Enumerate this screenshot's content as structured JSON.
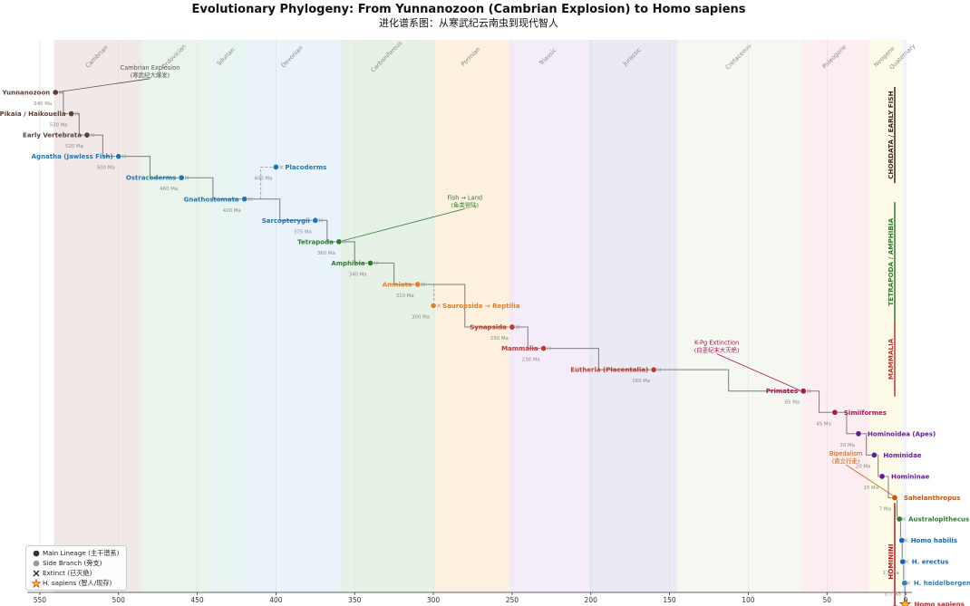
{
  "chart_data": {
    "type": "scatter",
    "title": "Evolutionary Phylogeny: From Yunnanozoon (Cambrian Explosion) to Homo sapiens",
    "subtitle": "进化谱系图：从寒武纪云南虫到现代智人",
    "xlabel": "(Present)",
    "x_ticks": [
      550,
      500,
      450,
      400,
      350,
      300,
      250,
      200,
      150,
      100,
      50,
      0
    ],
    "xlim": [
      558,
      -4
    ],
    "x_reversed": true,
    "periods": [
      {
        "name": "Cambrian",
        "start": 541,
        "end": 485,
        "color": "#d7c4c1"
      },
      {
        "name": "Ordovician",
        "start": 485,
        "end": 443,
        "color": "#c9e3c9"
      },
      {
        "name": "Silurian",
        "start": 443,
        "end": 419,
        "color": "#bfe3d9"
      },
      {
        "name": "Devonian",
        "start": 419,
        "end": 359,
        "color": "#c9e0f3"
      },
      {
        "name": "Carboniferous",
        "start": 359,
        "end": 299,
        "color": "#bfdcbf"
      },
      {
        "name": "Permian",
        "start": 299,
        "end": 252,
        "color": "#fbd8a8"
      },
      {
        "name": "Triassic",
        "start": 252,
        "end": 201,
        "color": "#e6cdef"
      },
      {
        "name": "Jurassic",
        "start": 201,
        "end": 145,
        "color": "#c5c9e3"
      },
      {
        "name": "Cretaceous",
        "start": 145,
        "end": 66,
        "color": "#e1edd9"
      },
      {
        "name": "Paleogene",
        "start": 66,
        "end": 23,
        "color": "#f8cfd9"
      },
      {
        "name": "Neogene",
        "start": 23,
        "end": 2.6,
        "color": "#fdf5c4"
      },
      {
        "name": "Quaternary",
        "start": 2.6,
        "end": 0,
        "color": "#d9ecf7"
      }
    ],
    "nodes": [
      {
        "label": "Yunnanozoon",
        "x": 540,
        "row": 0,
        "kind": "main",
        "color": "#5d4037",
        "age": "540 Ma"
      },
      {
        "label": "Pikaia / Haikouella",
        "x": 530,
        "row": 1,
        "kind": "main",
        "color": "#5d4037",
        "age": "530 Ma"
      },
      {
        "label": "Early Vertebrata",
        "x": 520,
        "row": 2,
        "kind": "main",
        "color": "#5d4037",
        "age": "520 Ma"
      },
      {
        "label": "Agnatha (Jawless Fish)",
        "x": 500,
        "row": 3,
        "kind": "main",
        "color": "#1f77b4",
        "age": "500 Ma"
      },
      {
        "label": "Ostracoderms",
        "x": 460,
        "row": 4,
        "kind": "main",
        "color": "#1f77b4",
        "age": "460 Ma"
      },
      {
        "label": "Placoderms",
        "x": 400,
        "row": 3.5,
        "kind": "side",
        "color": "#1f77b4",
        "age": "400 Ma"
      },
      {
        "label": "Gnathostomata",
        "x": 420,
        "row": 5,
        "kind": "main",
        "color": "#1f77b4",
        "age": "420 Ma"
      },
      {
        "label": "Sarcopterygii",
        "x": 375,
        "row": 6,
        "kind": "main",
        "color": "#1f77b4",
        "age": "375 Ma"
      },
      {
        "label": "Tetrapoda",
        "x": 360,
        "row": 7,
        "kind": "main",
        "color": "#2e7d32",
        "age": "360 Ma"
      },
      {
        "label": "Amphibia",
        "x": 340,
        "row": 8,
        "kind": "main",
        "color": "#2e7d32",
        "age": "340 Ma"
      },
      {
        "label": "Amniota",
        "x": 310,
        "row": 9,
        "kind": "main",
        "color": "#e67e22",
        "age": "310 Ma"
      },
      {
        "label": "Sauropsida → Reptilia",
        "x": 300,
        "row": 10,
        "kind": "side",
        "color": "#e67e22",
        "age": "300 Ma"
      },
      {
        "label": "Synapsida",
        "x": 250,
        "row": 11,
        "kind": "main",
        "color": "#c0392b",
        "age": "250 Ma"
      },
      {
        "label": "Mammalia",
        "x": 230,
        "row": 12,
        "kind": "main",
        "color": "#c0392b",
        "age": "230 Ma"
      },
      {
        "label": "Eutheria (Placentalia)",
        "x": 160,
        "row": 13,
        "kind": "main",
        "color": "#c0392b",
        "age": "160 Ma"
      },
      {
        "label": "Primates",
        "x": 65,
        "row": 14,
        "kind": "main",
        "color": "#ad1457",
        "age": "65 Ma"
      },
      {
        "label": "Simiiformes",
        "x": 45,
        "row": 15,
        "kind": "main",
        "color": "#ad1457",
        "age": "45 Ma"
      },
      {
        "label": "Hominoidea (Apes)",
        "x": 30,
        "row": 16,
        "kind": "main",
        "color": "#6a1b9a",
        "age": "30 Ma"
      },
      {
        "label": "Hominidae",
        "x": 20,
        "row": 17,
        "kind": "main",
        "color": "#6a1b9a",
        "age": "20 Ma"
      },
      {
        "label": "Homininae",
        "x": 15,
        "row": 18,
        "kind": "main",
        "color": "#6a1b9a",
        "age": "15 Ma"
      },
      {
        "label": "Sahelanthropus",
        "x": 7,
        "row": 19,
        "kind": "main",
        "color": "#d35400",
        "age": "7 Ma"
      },
      {
        "label": "Australopithecus",
        "x": 4,
        "row": 20,
        "kind": "extinct",
        "color": "#2e7d32",
        "age": ""
      },
      {
        "label": "Homo habilis",
        "x": 2.5,
        "row": 21,
        "kind": "extinct",
        "color": "#1565c0",
        "age": ""
      },
      {
        "label": "H. erectus",
        "x": 1.9,
        "row": 22,
        "kind": "extinct",
        "color": "#1565c0",
        "age": "1.9 Ma"
      },
      {
        "label": "H. heidelbergensis",
        "x": 0.7,
        "row": 23,
        "kind": "extinct",
        "color": "#2980b9",
        "age": "0.7 Ma"
      },
      {
        "label": "Homo sapiens",
        "x": 0.3,
        "row": 24,
        "kind": "sapiens",
        "color": "#c62828",
        "age": "0.3 Ma"
      }
    ],
    "annotations": [
      {
        "text": "Cambrian Explosion",
        "text2": "(寒武纪大爆发)",
        "tx": 480,
        "trow": -0.9,
        "ax": 540,
        "arow": 0,
        "color": "#555555"
      },
      {
        "text": "Fish → Land",
        "text2": "(鱼类登陆)",
        "tx": 280,
        "trow": 5.2,
        "ax": 360,
        "arow": 7,
        "color": "#2e7d32"
      },
      {
        "text": "K-Pg Extinction",
        "text2": "(白垩纪末大灭绝)",
        "tx": 120,
        "trow": 12.0,
        "ax": 66,
        "arow": 14,
        "color": "#ad1457"
      },
      {
        "text": "Bipedalism",
        "text2": "(直立行走)",
        "tx": 38,
        "trow": 17.2,
        "ax": 6,
        "arow": 19,
        "color": "#d35400"
      }
    ],
    "eras": [
      {
        "name": "CHORDATA / EARLY FISH",
        "row_start": 0,
        "row_end": 4,
        "color": "#3e2723"
      },
      {
        "name": "TETRAPODA / AMPHIBIA",
        "row_start": 5.4,
        "row_end": 10.5,
        "color": "#2e7d32"
      },
      {
        "name": "MAMMALIA",
        "row_start": 11,
        "row_end": 14,
        "color": "#c0392b"
      },
      {
        "name": "HOMININI",
        "row_start": 19.5,
        "row_end": 24.5,
        "color": "#b71c1c"
      }
    ],
    "legend": [
      {
        "label": "Main Lineage (主干谱系)",
        "symbol": "main"
      },
      {
        "label": "Side Branch (旁支)",
        "symbol": "side"
      },
      {
        "label": "Extinct (已灭绝)",
        "symbol": "extinct"
      },
      {
        "label": "H. sapiens (智人/现存)",
        "symbol": "sapiens"
      }
    ],
    "legend_placement": "lower-left",
    "grid": true
  }
}
